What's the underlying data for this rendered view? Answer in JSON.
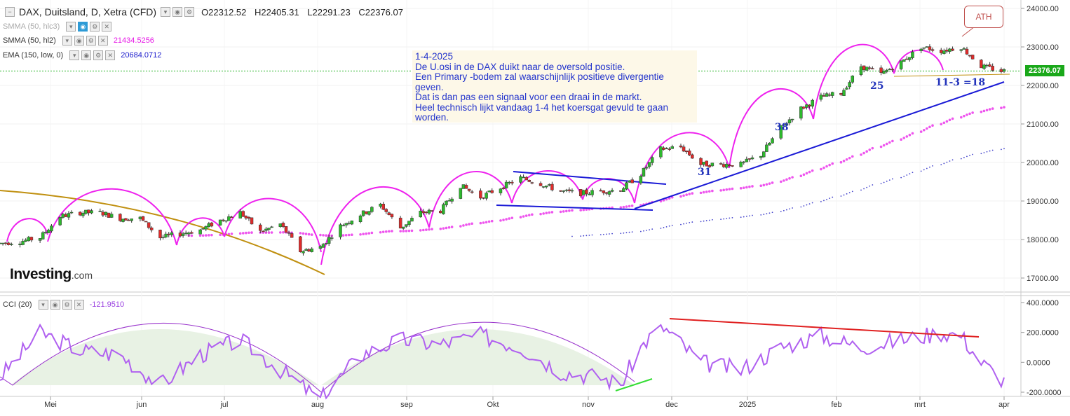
{
  "header": {
    "symbol_title": "DAX, Duitsland, D, Xetra (CFD)",
    "ohlc": {
      "open": "O22312.52",
      "high": "H22405.31",
      "low": "L22291.23",
      "close": "C22376.07"
    }
  },
  "indicators": [
    {
      "name": "SMMA (50, hlc3)",
      "value": "",
      "color": "#bbbbbb"
    },
    {
      "name": "SMMA (50, hl2)",
      "value": "21434.5256",
      "color": "#e619e6"
    },
    {
      "name": "EMA (150, low, 0)",
      "value": "20684.0712",
      "color": "#1a1acc"
    }
  ],
  "cci_legend": {
    "name": "CCI (20)",
    "value": "-121.9510",
    "color": "#9a40e0"
  },
  "note": {
    "text": "1-4-2025\nDe U.osi in de DAX duikt naar de oversold positie.\nEen Primary -bodem zal waarschijnlijk positieve divergentie geven.\nDat is dan pas een signaal voor een draai in de markt.\nHeel technisch lijkt vandaag 1-4 het koersgat gevuld te gaan worden."
  },
  "logo": {
    "main": "Investing",
    "suffix": ".com"
  },
  "price_tag": "22376.07",
  "ath_label": "ATH",
  "annotations": [
    "31",
    "38",
    "25",
    "11-3 =18"
  ],
  "price_axis": [
    "24000.00",
    "23000.00",
    "22000.00",
    "21000.00",
    "20000.00",
    "19000.00",
    "18000.00",
    "17000.00"
  ],
  "cci_axis": [
    "400.0000",
    "200.0000",
    "0.0000",
    "-200.0000"
  ],
  "time_axis": [
    "Mei",
    "jun",
    "jul",
    "aug",
    "sep",
    "Okt",
    "nov",
    "dec",
    "2025",
    "feb",
    "mrt",
    "apr"
  ],
  "colors": {
    "up": "#2db82d",
    "down": "#e02b2b",
    "cycle": "#ee22ee",
    "trend": "#1a1ad6",
    "smma": "#ee55ee",
    "ema": "#4444cc",
    "cci": "#b060f0",
    "cci_fill": "#e8f2e4",
    "red_line": "#e02020",
    "green_line": "#33dd33",
    "brown": "#c09010"
  },
  "chart_data": {
    "type": "candlestick",
    "title": "DAX, Duitsland, D, Xetra (CFD)",
    "x_start": "2024-04-15",
    "x_end": "2025-04-01",
    "ylim": [
      16700,
      24100
    ],
    "closes": [
      [
        "2024-04-15",
        17900
      ],
      [
        "2024-04-22",
        17950
      ],
      [
        "2024-04-29",
        18050
      ],
      [
        "2024-05-06",
        18600
      ],
      [
        "2024-05-13",
        18700
      ],
      [
        "2024-05-20",
        18700
      ],
      [
        "2024-05-27",
        18550
      ],
      [
        "2024-06-03",
        18550
      ],
      [
        "2024-06-10",
        18050
      ],
      [
        "2024-06-17",
        18150
      ],
      [
        "2024-06-24",
        18250
      ],
      [
        "2024-07-01",
        18500
      ],
      [
        "2024-07-08",
        18700
      ],
      [
        "2024-07-15",
        18200
      ],
      [
        "2024-07-22",
        18400
      ],
      [
        "2024-07-29",
        17700
      ],
      [
        "2024-08-05",
        17800
      ],
      [
        "2024-08-12",
        18350
      ],
      [
        "2024-08-19",
        18650
      ],
      [
        "2024-08-26",
        18900
      ],
      [
        "2024-09-02",
        18300
      ],
      [
        "2024-09-09",
        18700
      ],
      [
        "2024-09-16",
        18750
      ],
      [
        "2024-09-23",
        19400
      ],
      [
        "2024-09-30",
        19100
      ],
      [
        "2024-10-07",
        19350
      ],
      [
        "2024-10-14",
        19600
      ],
      [
        "2024-10-21",
        19450
      ],
      [
        "2024-10-28",
        19250
      ],
      [
        "2024-11-04",
        19200
      ],
      [
        "2024-11-11",
        19250
      ],
      [
        "2024-11-18",
        19300
      ],
      [
        "2024-11-25",
        19700
      ],
      [
        "2024-12-02",
        20350
      ],
      [
        "2024-12-09",
        20400
      ],
      [
        "2024-12-16",
        19950
      ],
      [
        "2024-12-23",
        19950
      ],
      [
        "2024-12-30",
        19950
      ],
      [
        "2025-01-06",
        20200
      ],
      [
        "2025-01-13",
        20900
      ],
      [
        "2025-01-20",
        21400
      ],
      [
        "2025-01-27",
        21700
      ],
      [
        "2025-02-03",
        21800
      ],
      [
        "2025-02-10",
        22500
      ],
      [
        "2025-02-17",
        22300
      ],
      [
        "2025-02-24",
        22600
      ],
      [
        "2025-03-03",
        23000
      ],
      [
        "2025-03-10",
        22900
      ],
      [
        "2025-03-17",
        23000
      ],
      [
        "2025-03-24",
        22500
      ],
      [
        "2025-03-31",
        22376
      ]
    ],
    "cci": [
      [
        "2024-04-15",
        -100
      ],
      [
        "2024-04-29",
        200
      ],
      [
        "2024-05-13",
        80
      ],
      [
        "2024-05-27",
        50
      ],
      [
        "2024-06-10",
        -150
      ],
      [
        "2024-06-24",
        50
      ],
      [
        "2024-07-08",
        150
      ],
      [
        "2024-07-22",
        -50
      ],
      [
        "2024-08-05",
        -250
      ],
      [
        "2024-08-19",
        50
      ],
      [
        "2024-09-02",
        150
      ],
      [
        "2024-09-16",
        120
      ],
      [
        "2024-09-30",
        180
      ],
      [
        "2024-10-14",
        100
      ],
      [
        "2024-10-28",
        -60
      ],
      [
        "2024-11-11",
        -100
      ],
      [
        "2024-11-18",
        -150
      ],
      [
        "2024-11-25",
        100
      ],
      [
        "2024-12-02",
        250
      ],
      [
        "2024-12-16",
        0
      ],
      [
        "2024-12-30",
        -50
      ],
      [
        "2025-01-13",
        100
      ],
      [
        "2025-01-27",
        180
      ],
      [
        "2025-02-10",
        100
      ],
      [
        "2025-02-24",
        150
      ],
      [
        "2025-03-10",
        200
      ],
      [
        "2025-03-17",
        180
      ],
      [
        "2025-03-24",
        0
      ],
      [
        "2025-04-01",
        -122
      ]
    ]
  }
}
